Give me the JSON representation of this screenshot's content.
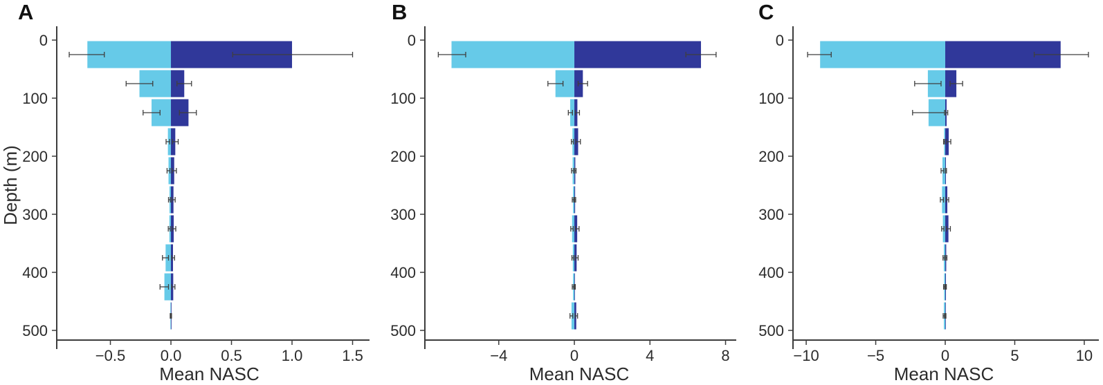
{
  "figure": {
    "background": "#ffffff",
    "colors": {
      "light_series": "#66cae8",
      "dark_series": "#30389a",
      "axis": "#3c3c3c",
      "error_bar": "#3f3f3f",
      "text": "#2b2b2b"
    }
  },
  "chart_data": [
    {
      "type": "bar",
      "orientation": "horizontal-diverging",
      "panel_label": "A",
      "xlabel": "Mean NASC",
      "ylabel": "Depth (m)",
      "xlim": [
        -0.943,
        1.577
      ],
      "ylim": [
        0,
        500
      ],
      "x_ticks": [
        -0.5,
        0.0,
        0.5,
        1.0,
        1.5
      ],
      "x_tick_labels": [
        "−0.5",
        "0.0",
        "0.5",
        "1.0",
        "1.5"
      ],
      "y_ticks": [
        0,
        100,
        200,
        300,
        400,
        500
      ],
      "y_tick_labels": [
        "0",
        "100",
        "200",
        "300",
        "400",
        "500"
      ],
      "depth_bins": [
        [
          0,
          50
        ],
        [
          50,
          100
        ],
        [
          100,
          150
        ],
        [
          150,
          200
        ],
        [
          200,
          250
        ],
        [
          250,
          300
        ],
        [
          300,
          350
        ],
        [
          350,
          400
        ],
        [
          400,
          450
        ],
        [
          450,
          500
        ]
      ],
      "series": [
        {
          "name": "light-blue-left",
          "values": [
            -0.69,
            -0.26,
            -0.16,
            -0.025,
            -0.02,
            -0.012,
            -0.013,
            -0.044,
            -0.054,
            -0.004
          ],
          "errors": [
            [
              -0.84,
              -0.55
            ],
            [
              -0.37,
              -0.15
            ],
            [
              -0.23,
              -0.09
            ],
            [
              -0.04,
              -0.01
            ],
            [
              -0.032,
              -0.008
            ],
            [
              -0.02,
              -0.005
            ],
            [
              -0.022,
              -0.006
            ],
            [
              -0.07,
              -0.02
            ],
            [
              -0.09,
              -0.02
            ],
            [
              -0.006,
              -0.002
            ]
          ]
        },
        {
          "name": "dark-blue-right",
          "values": [
            1.0,
            0.11,
            0.145,
            0.036,
            0.027,
            0.021,
            0.023,
            0.017,
            0.019,
            0.003
          ],
          "errors": [
            [
              0.51,
              1.5
            ],
            [
              0.05,
              0.17
            ],
            [
              0.07,
              0.21
            ],
            [
              0.012,
              0.06
            ],
            [
              0.01,
              0.045
            ],
            [
              0.008,
              0.035
            ],
            [
              0.01,
              0.04
            ],
            [
              0.006,
              0.03
            ],
            [
              0.006,
              0.033
            ],
            [
              0.001,
              0.005
            ]
          ]
        }
      ]
    },
    {
      "type": "bar",
      "orientation": "horizontal-diverging",
      "panel_label": "B",
      "xlabel": "Mean NASC",
      "ylabel": "",
      "xlim": [
        -7.91,
        8.42
      ],
      "ylim": [
        0,
        500
      ],
      "x_ticks": [
        -4,
        0,
        4,
        8
      ],
      "x_tick_labels": [
        "−4",
        "0",
        "4",
        "8"
      ],
      "y_ticks": [
        0,
        100,
        200,
        300,
        400,
        500
      ],
      "y_tick_labels": [
        "0",
        "100",
        "200",
        "300",
        "400",
        "500"
      ],
      "depth_bins": [
        [
          0,
          50
        ],
        [
          50,
          100
        ],
        [
          100,
          150
        ],
        [
          150,
          200
        ],
        [
          200,
          250
        ],
        [
          250,
          300
        ],
        [
          300,
          350
        ],
        [
          350,
          400
        ],
        [
          400,
          450
        ],
        [
          450,
          500
        ]
      ],
      "series": [
        {
          "name": "light-blue-left",
          "values": [
            -6.5,
            -1.0,
            -0.22,
            -0.1,
            -0.09,
            -0.07,
            -0.12,
            -0.08,
            -0.07,
            -0.15
          ],
          "errors": [
            [
              -7.2,
              -5.75
            ],
            [
              -1.4,
              -0.6
            ],
            [
              -0.32,
              -0.1
            ],
            [
              -0.16,
              -0.05
            ],
            [
              -0.15,
              -0.04
            ],
            [
              -0.11,
              -0.03
            ],
            [
              -0.19,
              -0.06
            ],
            [
              -0.13,
              -0.04
            ],
            [
              -0.11,
              -0.03
            ],
            [
              -0.23,
              -0.08
            ]
          ]
        },
        {
          "name": "dark-blue-right",
          "values": [
            6.7,
            0.45,
            0.16,
            0.2,
            0.05,
            0.04,
            0.15,
            0.12,
            0.03,
            0.1
          ],
          "errors": [
            [
              5.9,
              7.5
            ],
            [
              0.2,
              0.7
            ],
            [
              0.05,
              0.27
            ],
            [
              0.08,
              0.32
            ],
            [
              0.02,
              0.09
            ],
            [
              0.015,
              0.07
            ],
            [
              0.06,
              0.25
            ],
            [
              0.05,
              0.2
            ],
            [
              0.01,
              0.05
            ],
            [
              0.04,
              0.17
            ]
          ]
        }
      ]
    },
    {
      "type": "bar",
      "orientation": "horizontal-diverging",
      "panel_label": "C",
      "xlabel": "Mean NASC",
      "ylabel": "",
      "xlim": [
        -10.95,
        10.75
      ],
      "ylim": [
        0,
        500
      ],
      "x_ticks": [
        -10,
        -5,
        0,
        5,
        10
      ],
      "x_tick_labels": [
        "−10",
        "−5",
        "0",
        "5",
        "10"
      ],
      "y_ticks": [
        0,
        100,
        200,
        300,
        400,
        500
      ],
      "y_tick_labels": [
        "0",
        "100",
        "200",
        "300",
        "400",
        "500"
      ],
      "depth_bins": [
        [
          0,
          50
        ],
        [
          50,
          100
        ],
        [
          100,
          150
        ],
        [
          150,
          200
        ],
        [
          200,
          250
        ],
        [
          250,
          300
        ],
        [
          300,
          350
        ],
        [
          350,
          400
        ],
        [
          400,
          450
        ],
        [
          450,
          500
        ]
      ],
      "series": [
        {
          "name": "light-blue-left",
          "values": [
            -9.0,
            -1.25,
            -1.2,
            -0.08,
            -0.2,
            -0.23,
            -0.17,
            -0.1,
            -0.08,
            -0.1
          ],
          "errors": [
            [
              -9.9,
              -8.2
            ],
            [
              -2.2,
              -0.3
            ],
            [
              -2.35,
              -0.05
            ],
            [
              -0.12,
              -0.04
            ],
            [
              -0.3,
              -0.1
            ],
            [
              -0.35,
              -0.12
            ],
            [
              -0.26,
              -0.09
            ],
            [
              -0.16,
              -0.05
            ],
            [
              -0.12,
              -0.04
            ],
            [
              -0.15,
              -0.05
            ]
          ]
        },
        {
          "name": "dark-blue-right",
          "values": [
            8.3,
            0.8,
            0.1,
            0.25,
            0.05,
            0.15,
            0.23,
            0.07,
            0.05,
            0.03
          ],
          "errors": [
            [
              6.4,
              10.3
            ],
            [
              0.35,
              1.25
            ],
            [
              0.03,
              0.18
            ],
            [
              0.1,
              0.4
            ],
            [
              0.02,
              0.09
            ],
            [
              0.06,
              0.25
            ],
            [
              0.09,
              0.37
            ],
            [
              0.03,
              0.12
            ],
            [
              0.02,
              0.08
            ],
            [
              0.01,
              0.05
            ]
          ]
        }
      ]
    }
  ]
}
